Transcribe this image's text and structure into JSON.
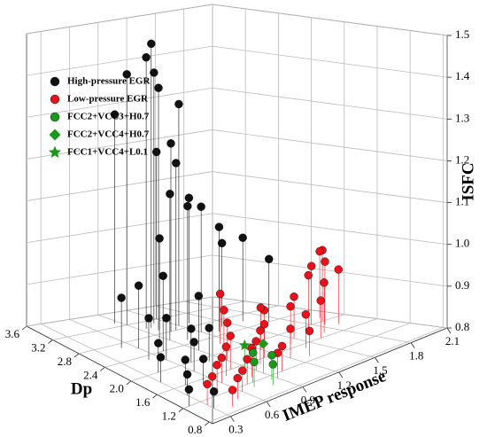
{
  "chart_data": {
    "type": "scatter3d",
    "xlabel": "IMEP response",
    "ylabel": "Dp",
    "zlabel": "ISFC",
    "xlim": [
      0.15,
      2.1
    ],
    "xticks": [
      0.3,
      0.6,
      0.9,
      1.2,
      1.5,
      1.8,
      2.1
    ],
    "ylim": [
      0.75,
      3.6
    ],
    "yticks": [
      0.8,
      1.2,
      1.6,
      {
        "value": 2,
        "label": "2.0"
      },
      2.4,
      2.8,
      3.2,
      3.6
    ],
    "zlim": [
      0.8,
      1.5
    ],
    "zticks": [
      0.8,
      0.9,
      {
        "value": 1,
        "label": "1.0"
      },
      1.1,
      1.2,
      1.3,
      1.4,
      1.5
    ],
    "grid": true,
    "legend": "upper left",
    "series": [
      {
        "name": "High-pressure EGR",
        "color": "#111111",
        "marker": "circle",
        "x": [
          1.0,
          0.95,
          1.1,
          0.9,
          1.2,
          1.0,
          0.85,
          1.05,
          1.1,
          0.9,
          1.0,
          1.2,
          1.3,
          1.4,
          1.6,
          1.7,
          0.8,
          0.7,
          0.6,
          0.5,
          0.5,
          0.6,
          0.7,
          0.4,
          0.3,
          0.4,
          0.3,
          0.5,
          0.6,
          0.8,
          0.2,
          0.3,
          0.9,
          1.3,
          1.2
        ],
        "y": [
          3.0,
          3.0,
          3.1,
          3.2,
          2.9,
          2.9,
          3.3,
          2.8,
          2.8,
          2.6,
          2.5,
          2.6,
          2.5,
          2.6,
          2.6,
          2.4,
          2.6,
          2.4,
          2.6,
          2.7,
          2.3,
          2.2,
          2.0,
          2.0,
          1.8,
          1.6,
          1.4,
          1.5,
          1.8,
          1.9,
          1.2,
          1.0,
          2.2,
          2.9,
          3.2
        ],
        "z": [
          1.48,
          1.45,
          1.4,
          1.4,
          1.33,
          1.38,
          1.3,
          1.25,
          1.2,
          1.15,
          1.12,
          1.1,
          1.05,
          1.0,
          1.0,
          0.95,
          1.05,
          0.98,
          0.95,
          0.92,
          0.9,
          0.9,
          0.88,
          0.87,
          0.86,
          0.86,
          0.85,
          0.86,
          0.87,
          0.88,
          0.84,
          0.84,
          0.93,
          1.1,
          1.2
        ]
      },
      {
        "name": "Low-pressure EGR",
        "color": "#e8121b",
        "marker": "circle",
        "x": [
          1.9,
          1.95,
          1.85,
          1.8,
          1.9,
          1.7,
          1.5,
          1.4,
          1.3,
          1.2,
          1.0,
          1.1,
          0.9,
          0.8,
          0.7,
          0.6,
          0.5,
          0.4,
          0.3,
          0.6,
          0.7,
          0.8,
          0.9,
          1.0,
          1.1,
          1.2,
          1.3,
          1.4,
          1.6,
          1.7,
          0.5,
          0.4,
          0.9,
          1.0
        ],
        "y": [
          2.0,
          2.1,
          1.9,
          2.0,
          1.8,
          1.7,
          1.8,
          1.7,
          1.9,
          1.8,
          2.0,
          2.2,
          1.8,
          1.6,
          1.5,
          1.4,
          1.3,
          1.2,
          1.1,
          1.1,
          1.2,
          1.3,
          1.4,
          1.5,
          1.6,
          1.4,
          1.3,
          1.5,
          1.6,
          1.9,
          1.0,
          0.9,
          1.1,
          1.2
        ],
        "z": [
          0.97,
          0.96,
          0.95,
          0.94,
          0.93,
          0.92,
          0.9,
          0.89,
          0.88,
          0.9,
          0.9,
          0.92,
          0.89,
          0.88,
          0.87,
          0.86,
          0.86,
          0.85,
          0.85,
          0.85,
          0.86,
          0.87,
          0.87,
          0.88,
          0.88,
          0.87,
          0.86,
          0.88,
          0.89,
          0.93,
          0.85,
          0.84,
          0.86,
          0.86
        ]
      },
      {
        "name": "FCC2+VCC3+H0.7",
        "color": "#1a9a1a",
        "marker": "circle",
        "x": [
          0.7,
          0.75,
          0.8,
          0.85
        ],
        "y": [
          1.1,
          1.2,
          1.0,
          1.1
        ],
        "z": [
          0.86,
          0.87,
          0.85,
          0.86
        ]
      },
      {
        "name": "FCC2+VCC4+H0.7",
        "color": "#1a9a1a",
        "marker": "diamond",
        "x": [
          0.9
        ],
        "y": [
          1.3
        ],
        "z": [
          0.87
        ]
      },
      {
        "name": "FCC1+VCC4+L0.1",
        "color": "#1a9a1a",
        "marker": "star",
        "x": [
          0.8
        ],
        "y": [
          1.4
        ],
        "z": [
          0.87
        ]
      }
    ]
  }
}
